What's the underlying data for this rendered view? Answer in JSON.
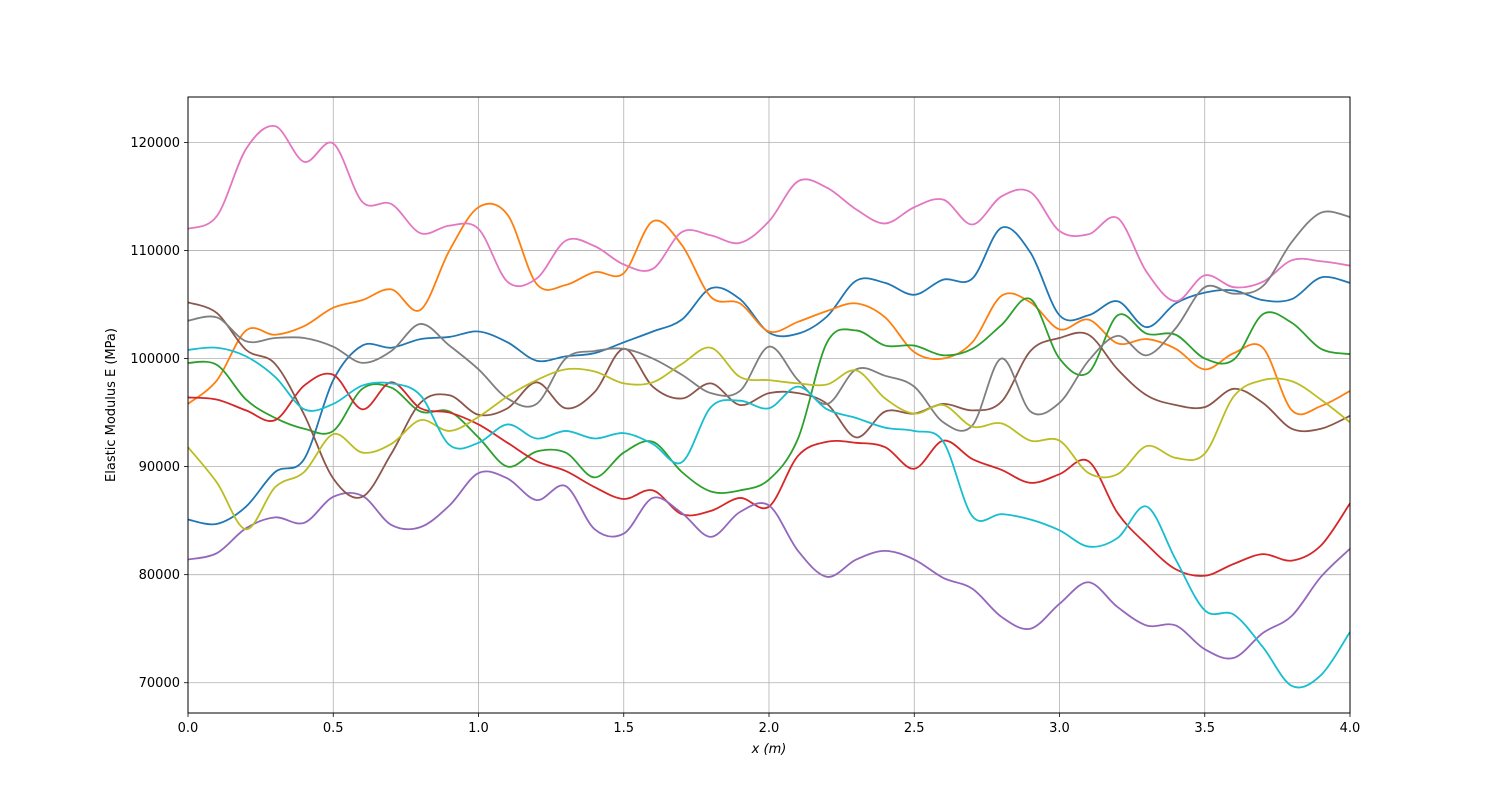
{
  "chart_data": {
    "type": "line",
    "title": "",
    "xlabel": "x (m)",
    "ylabel": "Elastic Modulus E (MPa)",
    "xlim": [
      0,
      4.0
    ],
    "ylim": [
      67200,
      124200
    ],
    "grid": true,
    "legend": "none",
    "x_ticks": [
      0.0,
      0.5,
      1.0,
      1.5,
      2.0,
      2.5,
      3.0,
      3.5,
      4.0
    ],
    "x_tick_labels": [
      "0.0",
      "0.5",
      "1.0",
      "1.5",
      "2.0",
      "2.5",
      "3.0",
      "3.5",
      "4.0"
    ],
    "y_ticks": [
      70000,
      80000,
      90000,
      100000,
      110000,
      120000
    ],
    "y_tick_labels": [
      "70000",
      "80000",
      "90000",
      "100000",
      "110000",
      "120000"
    ],
    "x": [
      0.0,
      0.1,
      0.2,
      0.3,
      0.4,
      0.5,
      0.6,
      0.7,
      0.8,
      0.9,
      1.0,
      1.1,
      1.2,
      1.3,
      1.4,
      1.5,
      1.6,
      1.7,
      1.8,
      1.9,
      2.0,
      2.1,
      2.2,
      2.3,
      2.4,
      2.5,
      2.6,
      2.7,
      2.8,
      2.9,
      3.0,
      3.1,
      3.2,
      3.3,
      3.4,
      3.5,
      3.6,
      3.7,
      3.8,
      3.9,
      4.0
    ],
    "series": [
      {
        "color": "#1f77b4",
        "values": [
          85100,
          84700,
          86300,
          89500,
          90700,
          98000,
          101200,
          101000,
          101800,
          102000,
          102500,
          101500,
          99800,
          100200,
          100500,
          101500,
          102500,
          103600,
          106500,
          105500,
          102400,
          102300,
          103900,
          107200,
          107000,
          105900,
          107300,
          107400,
          112100,
          109800,
          104000,
          104000,
          105300,
          102900,
          105100,
          106100,
          106300,
          105400,
          105500,
          107500,
          107000
        ]
      },
      {
        "color": "#ff7f0e",
        "values": [
          95800,
          98000,
          102600,
          102200,
          103000,
          104700,
          105400,
          106400,
          104500,
          110000,
          114000,
          113300,
          106900,
          106800,
          108000,
          107900,
          112700,
          110500,
          105700,
          105100,
          102500,
          103400,
          104400,
          105100,
          103800,
          100600,
          100000,
          101500,
          105800,
          105200,
          102700,
          103600,
          101400,
          101800,
          100900,
          99000,
          100500,
          101000,
          95200,
          95600,
          97000
        ]
      },
      {
        "color": "#2ca02c",
        "values": [
          99600,
          99400,
          96200,
          94500,
          93500,
          93300,
          97200,
          97300,
          95100,
          95100,
          92700,
          90000,
          91400,
          91300,
          89000,
          91300,
          92300,
          89500,
          87700,
          87800,
          88800,
          92600,
          101500,
          102600,
          101200,
          101200,
          100300,
          100900,
          103100,
          105500,
          100000,
          98700,
          104000,
          102300,
          102200,
          100000,
          99900,
          104100,
          103300,
          100900,
          100400
        ]
      },
      {
        "color": "#d62728",
        "values": [
          96400,
          96200,
          95200,
          94300,
          97500,
          98500,
          95300,
          97800,
          95400,
          95000,
          93900,
          92200,
          90500,
          89600,
          88100,
          87000,
          87800,
          85600,
          85900,
          87100,
          86300,
          91000,
          92300,
          92200,
          91800,
          89800,
          92400,
          90700,
          89700,
          88500,
          89300,
          90500,
          85700,
          82800,
          80500,
          79900,
          81000,
          81900,
          81300,
          82700,
          86600
        ]
      },
      {
        "color": "#9467bd",
        "values": [
          81400,
          82000,
          84300,
          85300,
          84800,
          87200,
          87300,
          84600,
          84400,
          86400,
          89400,
          88900,
          86900,
          88200,
          84200,
          83800,
          87100,
          85700,
          83500,
          85800,
          86400,
          82200,
          79800,
          81400,
          82200,
          81400,
          79700,
          78700,
          76100,
          75000,
          77300,
          79300,
          77000,
          75300,
          75300,
          73100,
          72300,
          74600,
          76200,
          79800,
          82400
        ]
      },
      {
        "color": "#8c564b",
        "values": [
          105200,
          104200,
          100800,
          99500,
          94800,
          88900,
          87200,
          91200,
          95900,
          96600,
          94800,
          95400,
          97800,
          95400,
          96900,
          100900,
          97400,
          96300,
          97700,
          95700,
          96800,
          96800,
          95800,
          92700,
          95100,
          94900,
          95800,
          95200,
          96000,
          100700,
          101900,
          102200,
          99000,
          96600,
          95700,
          95500,
          97200,
          95900,
          93500,
          93500,
          94700
        ]
      },
      {
        "color": "#e377c2",
        "values": [
          112000,
          113200,
          119400,
          121500,
          118200,
          119900,
          114500,
          114300,
          111600,
          112300,
          112000,
          107100,
          107400,
          110900,
          110400,
          108700,
          108300,
          111700,
          111400,
          110700,
          112700,
          116400,
          115800,
          113800,
          112500,
          114000,
          114700,
          112400,
          115000,
          115400,
          111800,
          111500,
          113000,
          108000,
          105300,
          107700,
          106600,
          107100,
          109100,
          109000,
          108600
        ]
      },
      {
        "color": "#7f7f7f",
        "values": [
          103500,
          103800,
          101600,
          101900,
          101900,
          101100,
          99600,
          100700,
          103200,
          101200,
          99000,
          96300,
          95800,
          100000,
          100700,
          100900,
          100000,
          98500,
          96800,
          97000,
          101100,
          98000,
          95800,
          99000,
          98400,
          97400,
          94100,
          93800,
          100000,
          95100,
          95900,
          99800,
          102100,
          100300,
          102800,
          106600,
          106000,
          106700,
          110800,
          113500,
          113100
        ]
      },
      {
        "color": "#bcbd22",
        "values": [
          91800,
          88500,
          84200,
          88100,
          89500,
          93000,
          91300,
          92100,
          94300,
          93300,
          94600,
          96500,
          98000,
          99000,
          98800,
          97700,
          97800,
          99500,
          101000,
          98300,
          98000,
          97700,
          97600,
          98900,
          96300,
          94900,
          95700,
          93700,
          94000,
          92400,
          92400,
          89400,
          89300,
          91900,
          90800,
          91200,
          96500,
          98000,
          97900,
          96200,
          94100
        ]
      },
      {
        "color": "#17becf",
        "values": [
          100800,
          101000,
          100200,
          98300,
          95300,
          95800,
          97500,
          97700,
          96600,
          92000,
          92200,
          93900,
          92600,
          93300,
          92600,
          93100,
          92100,
          90400,
          95500,
          96100,
          95400,
          97400,
          95300,
          94500,
          93600,
          93300,
          92300,
          85400,
          85600,
          85100,
          84100,
          82600,
          83400,
          86300,
          81400,
          76700,
          76300,
          73300,
          69700,
          70700,
          74700
        ]
      }
    ]
  }
}
